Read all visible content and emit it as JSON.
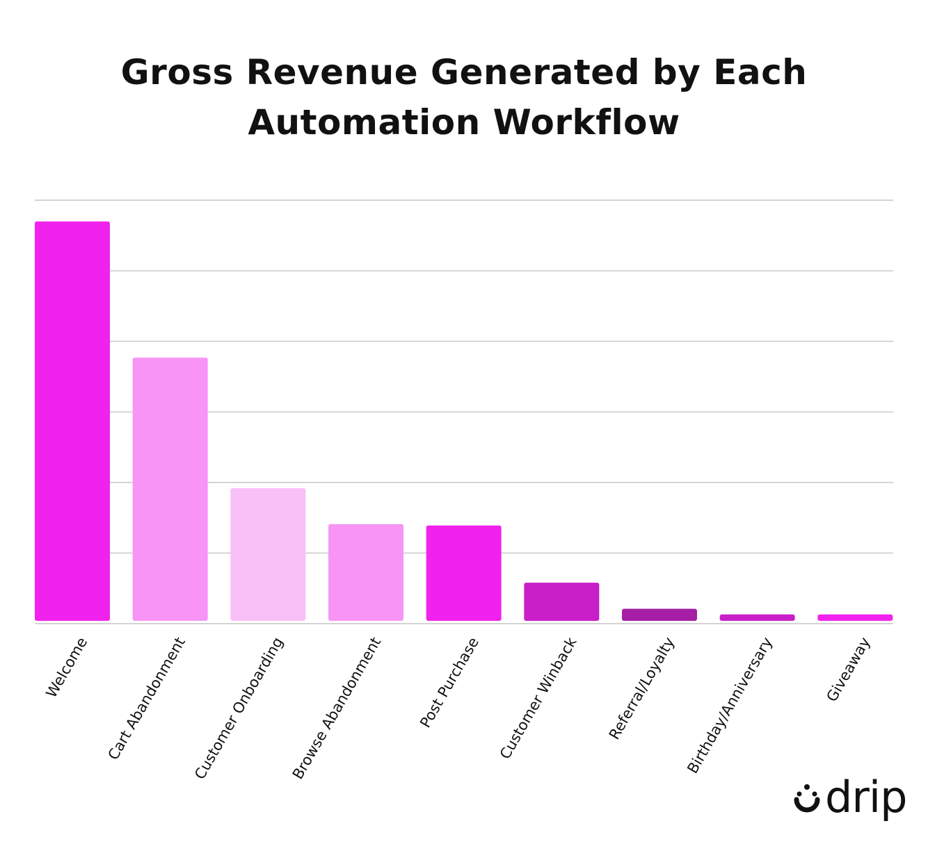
{
  "chart_data": {
    "type": "bar",
    "title": "Gross Revenue Generated by Each Automation Workflow",
    "categories": [
      "Welcome",
      "Cart Abandonment",
      "Customer Onboarding",
      "Browse Abandonment",
      "Post Purchase",
      "Customer Winback",
      "Referral/Loyalty",
      "Birthday/Anniversary",
      "Giveaway"
    ],
    "values": [
      5.7,
      3.77,
      1.92,
      1.41,
      1.39,
      0.58,
      0.21,
      0.13,
      0.13
    ],
    "colors": [
      "#f222ee",
      "#f794f5",
      "#f9c0f8",
      "#f794f5",
      "#f222ee",
      "#c81fc8",
      "#a51ea5",
      "#c81fc8",
      "#f222ee"
    ],
    "ylim": [
      0,
      6
    ],
    "yticks": [
      0,
      1,
      2,
      3,
      4,
      5,
      6
    ],
    "grid": true
  },
  "logo": "drip"
}
